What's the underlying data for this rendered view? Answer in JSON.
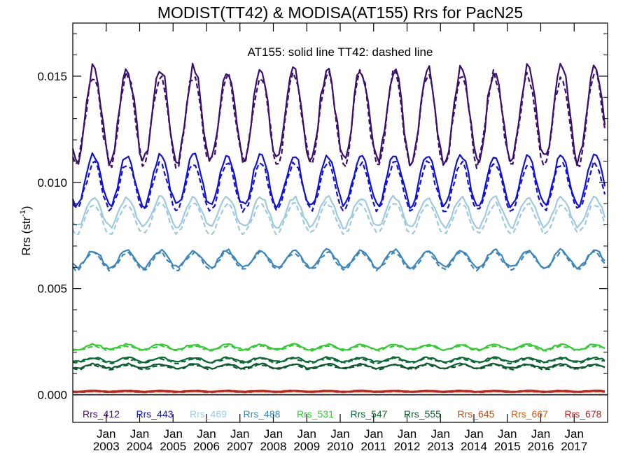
{
  "chart_data": {
    "type": "line",
    "title": "MODIST(TT42) & MODISA(AT155)  Rrs for PacN25",
    "annotation": "AT155: solid line    TT42: dashed line",
    "ylabel": "Rrs (str",
    "ylabel_sup": "-1",
    "ylabel_tail": ")",
    "ylim": [
      -0.0013,
      0.0175
    ],
    "x_range": [
      2002.0,
      2018.0
    ],
    "yticks": [
      {
        "v": 0.0,
        "label": "0.000"
      },
      {
        "v": 0.005,
        "label": "0.005"
      },
      {
        "v": 0.01,
        "label": "0.010"
      },
      {
        "v": 0.015,
        "label": "0.015"
      }
    ],
    "xticks": [
      {
        "v": 2003.0,
        "l1": "Jan",
        "l2": "2003"
      },
      {
        "v": 2004.0,
        "l1": "Jan",
        "l2": "2004"
      },
      {
        "v": 2005.0,
        "l1": "Jan",
        "l2": "2005"
      },
      {
        "v": 2006.0,
        "l1": "Jan",
        "l2": "2006"
      },
      {
        "v": 2007.0,
        "l1": "Jan",
        "l2": "2007"
      },
      {
        "v": 2008.0,
        "l1": "Jan",
        "l2": "2008"
      },
      {
        "v": 2009.0,
        "l1": "Jan",
        "l2": "2009"
      },
      {
        "v": 2010.0,
        "l1": "Jan",
        "l2": "2010"
      },
      {
        "v": 2011.0,
        "l1": "Jan",
        "l2": "2011"
      },
      {
        "v": 2012.0,
        "l1": "Jan",
        "l2": "2012"
      },
      {
        "v": 2013.0,
        "l1": "Jan",
        "l2": "2013"
      },
      {
        "v": 2014.0,
        "l1": "Jan",
        "l2": "2014"
      },
      {
        "v": 2015.0,
        "l1": "Jan",
        "l2": "2015"
      },
      {
        "v": 2016.0,
        "l1": "Jan",
        "l2": "2016"
      },
      {
        "v": 2017.0,
        "l1": "Jan",
        "l2": "2017"
      }
    ],
    "zero_line": 0.0,
    "legend": [
      {
        "label": "Rrs_412",
        "color": "#3b0f6e"
      },
      {
        "label": "Rrs_443",
        "color": "#1010dd"
      },
      {
        "label": "Rrs_469",
        "color": "#9ecae1"
      },
      {
        "label": "Rrs_488",
        "color": "#3b86bd"
      },
      {
        "label": "Rrs_531",
        "color": "#33cc33"
      },
      {
        "label": "Rrs_547",
        "color": "#0b6b34"
      },
      {
        "label": "Rrs_555",
        "color": "#0a5c2e"
      },
      {
        "label": "Rrs_645",
        "color": "#b8501c"
      },
      {
        "label": "Rrs_667",
        "color": "#e05a10"
      },
      {
        "label": "Rrs_678",
        "color": "#c0202a"
      }
    ],
    "series": [
      {
        "name": "Rrs_412",
        "color": "#3b0f6e",
        "solid": {
          "mean": 0.0132,
          "amp": 0.0022,
          "noise": 0.0003
        },
        "dashed": {
          "mean": 0.013,
          "amp": 0.0021,
          "noise": 0.0003
        },
        "peak_time": 0.62
      },
      {
        "name": "Rrs_443",
        "color": "#1010dd",
        "solid": {
          "mean": 0.0101,
          "amp": 0.0012,
          "noise": 0.00015
        },
        "dashed": {
          "mean": 0.0098,
          "amp": 0.0011,
          "noise": 0.00015
        },
        "peak_time": 0.62
      },
      {
        "name": "Rrs_469",
        "color": "#9ecae1",
        "solid": {
          "mean": 0.0086,
          "amp": 0.0007,
          "noise": 0.0001
        },
        "dashed": {
          "mean": 0.0083,
          "amp": 0.0007,
          "noise": 0.0001
        },
        "peak_time": 0.62
      },
      {
        "name": "Rrs_488",
        "color": "#3b86bd",
        "solid": {
          "mean": 0.0064,
          "amp": 0.0004,
          "noise": 8e-05
        },
        "dashed": {
          "mean": 0.0063,
          "amp": 0.0004,
          "noise": 8e-05
        },
        "peak_time": 0.62
      },
      {
        "name": "Rrs_531",
        "color": "#33cc33",
        "solid": {
          "mean": 0.00225,
          "amp": 0.00012,
          "noise": 4e-05
        },
        "dashed": {
          "mean": 0.0022,
          "amp": 0.0001,
          "noise": 4e-05
        },
        "peak_time": 0.62
      },
      {
        "name": "Rrs_547",
        "color": "#0b6b34",
        "solid": {
          "mean": 0.00165,
          "amp": 0.0001,
          "noise": 4e-05
        },
        "dashed": {
          "mean": 0.0016,
          "amp": 0.0001,
          "noise": 4e-05
        },
        "peak_time": 0.62
      },
      {
        "name": "Rrs_555",
        "color": "#0a5c2e",
        "solid": {
          "mean": 0.00135,
          "amp": 0.0001,
          "noise": 4e-05
        },
        "dashed": {
          "mean": 0.0013,
          "amp": 0.0001,
          "noise": 4e-05
        },
        "peak_time": 0.62
      },
      {
        "name": "Rrs_645",
        "color": "#b8501c",
        "solid": {
          "mean": 0.00018,
          "amp": 2e-05,
          "noise": 1e-05
        },
        "dashed": {
          "mean": 0.00017,
          "amp": 2e-05,
          "noise": 1e-05
        },
        "peak_time": 0.62
      },
      {
        "name": "Rrs_667",
        "color": "#e05a10",
        "solid": {
          "mean": 0.00014,
          "amp": 2e-05,
          "noise": 1e-05
        },
        "dashed": {
          "mean": 0.00013,
          "amp": 2e-05,
          "noise": 1e-05
        },
        "peak_time": 0.62
      },
      {
        "name": "Rrs_678",
        "color": "#c0202a",
        "solid": {
          "mean": 0.00016,
          "amp": 2e-05,
          "noise": 1e-05
        },
        "dashed": {
          "mean": 0.00015,
          "amp": 2e-05,
          "noise": 1e-05
        },
        "peak_time": 0.62
      }
    ]
  }
}
